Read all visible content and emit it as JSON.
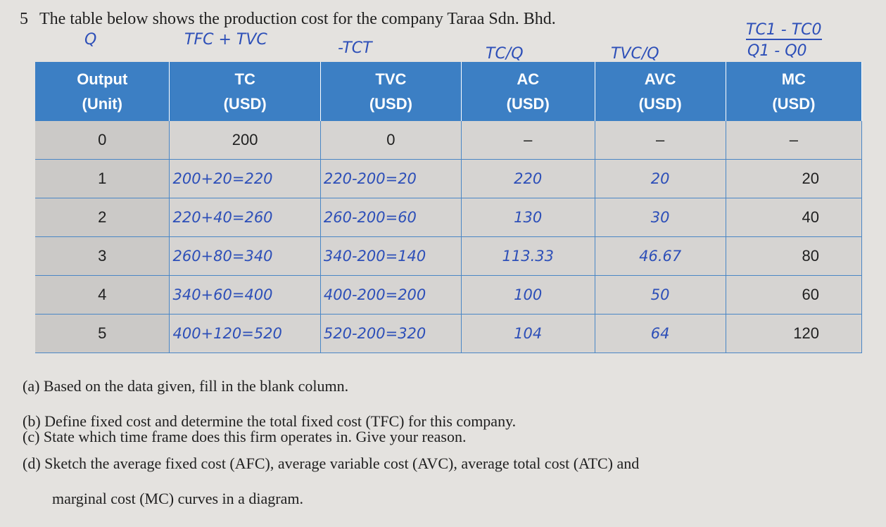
{
  "question_number": "5",
  "intro": "The table below shows the production cost for the company Taraa Sdn. Bhd.",
  "annotations": {
    "output": "Q",
    "tc": "TFC + TVC",
    "tvc": "-TCT",
    "ac": "TC/Q",
    "avc": "TVC/Q",
    "mc_top": "TC1 - TC0",
    "mc_bottom": "Q1 - Q0"
  },
  "table": {
    "header": [
      [
        "Output",
        "(Unit)"
      ],
      [
        "TC",
        "(USD)"
      ],
      [
        "TVC",
        "(USD)"
      ],
      [
        "AC",
        "(USD)"
      ],
      [
        "AVC",
        "(USD)"
      ],
      [
        "MC",
        "(USD)"
      ]
    ],
    "rows": [
      [
        "0",
        "200",
        "0",
        "–",
        "–",
        "–"
      ],
      [
        "1",
        "200+20=220",
        "220-200=20",
        "220",
        "20",
        "20"
      ],
      [
        "2",
        "220+40=260",
        "260-200=60",
        "130",
        "30",
        "40"
      ],
      [
        "3",
        "260+80=340",
        "340-200=140",
        "113.33",
        "46.67",
        "80"
      ],
      [
        "4",
        "340+60=400",
        "400-200=200",
        "100",
        "50",
        "60"
      ],
      [
        "5",
        "400+120=520",
        "520-200=320",
        "104",
        "64",
        "120"
      ]
    ]
  },
  "questions": [
    "(a) Based on the data given, fill in the blank column.",
    "(b) Define fixed cost and determine the total fixed cost (TFC) for this company.",
    "(c) State which time frame does this firm operates in. Give your reason.",
    "(d) Sketch the average fixed cost (AFC), average variable cost (AVC), average total cost (ATC) and",
    "marginal cost (MC) curves in a diagram."
  ]
}
